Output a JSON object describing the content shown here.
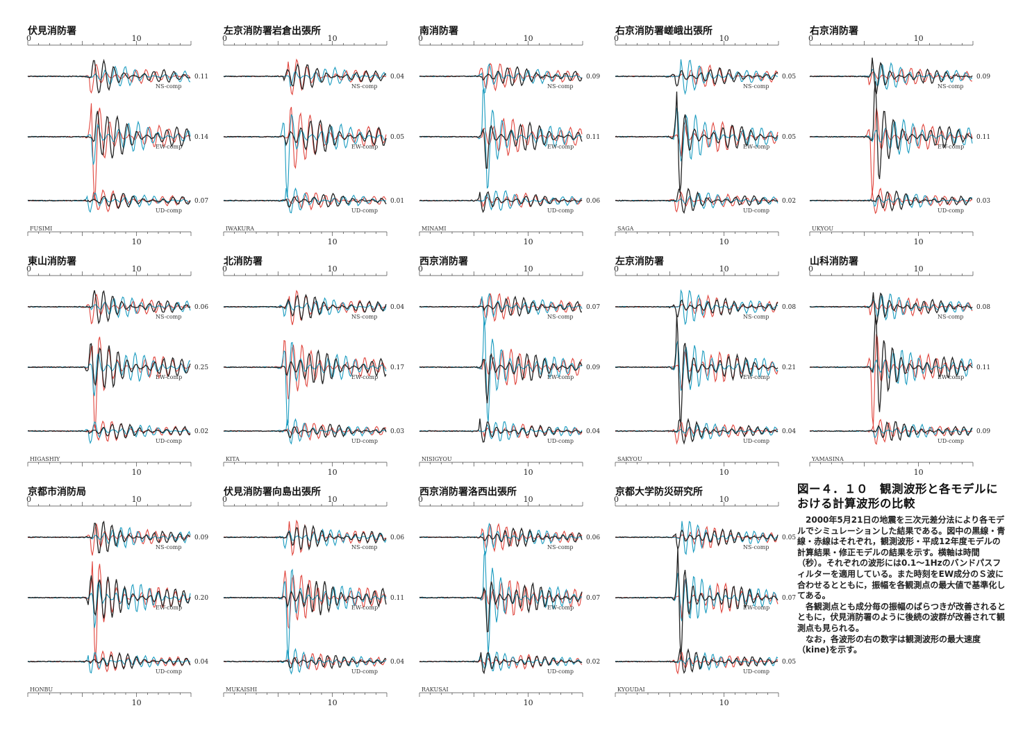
{
  "figure": {
    "caption_title": "図ー４．１０　観測波形と各モデルにおける計算波形の比較",
    "caption_paragraphs": [
      "2000年5月21日の地震を三次元差分法により各モデルでシミュレーションした結果である。図中の黒線・青線・赤線はそれぞれ，観測波形・平成12年度モデルの計算結果・修正モデルの結果を示す。横軸は時間（秒）。それぞれの波形には0.1～1Hzのバンドパスフィルターを適用している。また時刻をEW成分のＳ波に合わせるとともに，振幅を各観測点の最大値で基準化してある。",
      "各観測点とも成分毎の振幅のばらつきが改善されるとともに，伏見消防署のように後続の波群が改善されて観測点も見られる。",
      "なお，各波形の右の数字は観測波形の最大速度（kine)を示す。"
    ]
  },
  "chart_data": {
    "type": "line",
    "xlabel": "",
    "axis_ticks": [
      "0",
      "10"
    ],
    "components": [
      "NS-comp",
      "EW-comp",
      "UD-comp"
    ],
    "colors": {
      "observed": "#222222",
      "model_h12": "#1a9bbf",
      "model_revised": "#e0443c"
    },
    "stations": [
      {
        "title": "伏見消防署",
        "code": "FUSIMI",
        "peaks": [
          "0.11",
          "0.14",
          "0.07"
        ]
      },
      {
        "title": "左京消防署岩倉出張所",
        "code": "IWAKURA",
        "peaks": [
          "0.04",
          "0.05",
          "0.01"
        ]
      },
      {
        "title": "南消防署",
        "code": "MINAMI",
        "peaks": [
          "0.09",
          "0.11",
          "0.06"
        ]
      },
      {
        "title": "右京消防署嵯峨出張所",
        "code": "SAGA",
        "peaks": [
          "0.05",
          "0.05",
          "0.02"
        ]
      },
      {
        "title": "右京消防署",
        "code": "UKYOU",
        "peaks": [
          "0.09",
          "0.11",
          "0.03"
        ]
      },
      {
        "title": "東山消防署",
        "code": "HIGASHIY",
        "peaks": [
          "0.06",
          "0.25",
          "0.02"
        ]
      },
      {
        "title": "北消防署",
        "code": "KITA",
        "peaks": [
          "0.04",
          "0.17",
          "0.03"
        ]
      },
      {
        "title": "西京消防署",
        "code": "NISIGYOU",
        "peaks": [
          "0.07",
          "0.09",
          "0.04"
        ]
      },
      {
        "title": "左京消防署",
        "code": "SAKYOU",
        "peaks": [
          "0.08",
          "0.21",
          "0.04"
        ]
      },
      {
        "title": "山科消防署",
        "code": "YAMASINA",
        "peaks": [
          "0.08",
          "0.11",
          "0.09"
        ]
      },
      {
        "title": "京都市消防局",
        "code": "HONBU",
        "peaks": [
          "0.09",
          "0.20",
          "0.04"
        ]
      },
      {
        "title": "伏見消防署向島出張所",
        "code": "MUKAISHI",
        "peaks": [
          "0.06",
          "0.11",
          "0.04"
        ]
      },
      {
        "title": "西京消防署洛西出張所",
        "code": "RAKUSAI",
        "peaks": [
          "0.06",
          "0.07",
          "0.02"
        ]
      },
      {
        "title": "京都大学防災研究所",
        "code": "KYOUDAI",
        "peaks": [
          "0.05",
          "0.07",
          "0.05"
        ]
      }
    ]
  }
}
